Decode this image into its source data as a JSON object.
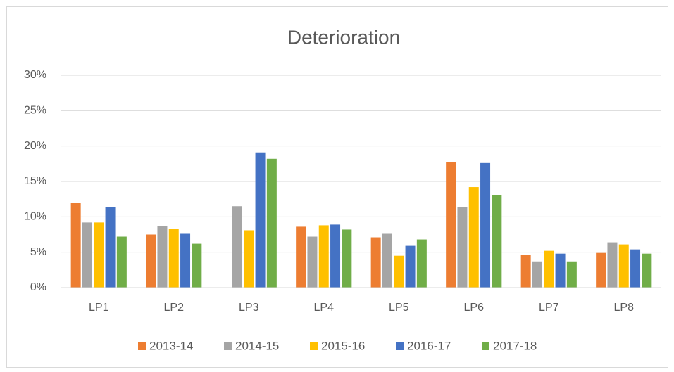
{
  "chart_data": {
    "type": "bar",
    "title": "Deterioration",
    "categories": [
      "LP1",
      "LP2",
      "LP3",
      "LP4",
      "LP5",
      "LP6",
      "LP7",
      "LP8"
    ],
    "series": [
      {
        "name": "2013-14",
        "color": "#ED7D31",
        "values": [
          12.0,
          7.5,
          0,
          8.6,
          7.1,
          17.7,
          4.6,
          4.9
        ]
      },
      {
        "name": "2014-15",
        "color": "#A5A5A5",
        "values": [
          9.2,
          8.7,
          11.5,
          7.2,
          7.6,
          11.4,
          3.7,
          6.4
        ]
      },
      {
        "name": "2015-16",
        "color": "#FFC000",
        "values": [
          9.2,
          8.3,
          8.1,
          8.8,
          4.5,
          14.2,
          5.2,
          6.1
        ]
      },
      {
        "name": "2016-17",
        "color": "#4472C4",
        "values": [
          11.4,
          7.6,
          19.1,
          8.9,
          5.9,
          17.6,
          4.8,
          5.4
        ]
      },
      {
        "name": "2017-18",
        "color": "#70AD47",
        "values": [
          7.2,
          6.2,
          18.2,
          8.2,
          6.8,
          13.1,
          3.7,
          4.8
        ]
      }
    ],
    "ylim": [
      0,
      30
    ],
    "yticks": [
      {
        "value": 0,
        "label": "0%"
      },
      {
        "value": 5,
        "label": "5%"
      },
      {
        "value": 10,
        "label": "10%"
      },
      {
        "value": 15,
        "label": "15%"
      },
      {
        "value": 20,
        "label": "20%"
      },
      {
        "value": 25,
        "label": "25%"
      },
      {
        "value": 30,
        "label": "30%"
      }
    ],
    "grid": true,
    "legend": "bottom"
  }
}
